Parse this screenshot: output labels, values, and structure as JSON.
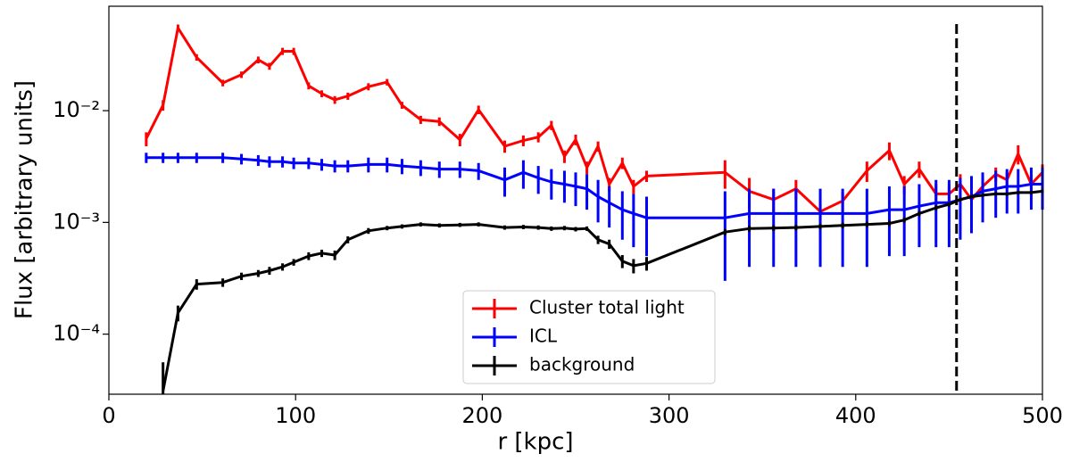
{
  "chart_data": {
    "type": "line",
    "xlabel": "r [kpc]",
    "ylabel": "Flux [arbitrary units]",
    "xlim": [
      0,
      500
    ],
    "xticks": [
      0,
      100,
      200,
      300,
      400,
      500
    ],
    "ylim": [
      2.9e-05,
      0.086
    ],
    "log_y": true,
    "yticks": [
      {
        "value": 0.0001,
        "label": "10⁻⁴"
      },
      {
        "value": 0.001,
        "label": "10⁻³"
      },
      {
        "value": 0.01,
        "label": "10⁻²"
      }
    ],
    "vline": 454,
    "legend": "lower center",
    "x": [
      20,
      29,
      37,
      47,
      61,
      71,
      80,
      86,
      93,
      99,
      107,
      114,
      121,
      128,
      139,
      149,
      157,
      167,
      177,
      188,
      198,
      212,
      222,
      230,
      237,
      244,
      250,
      256,
      262,
      268,
      275,
      281,
      288,
      330,
      343,
      356,
      368,
      381,
      393,
      406,
      418,
      426,
      434,
      443,
      450,
      456,
      462,
      468,
      475,
      481,
      487,
      494,
      500
    ],
    "series": [
      {
        "name": "Cluster total light",
        "color": "#ff0000",
        "values": [
          0.0056,
          0.0112,
          0.055,
          0.03,
          0.0177,
          0.021,
          0.0285,
          0.025,
          0.034,
          0.034,
          0.0167,
          0.0142,
          0.0125,
          0.0135,
          0.0164,
          0.018,
          0.0112,
          0.0083,
          0.008,
          0.0055,
          0.0102,
          0.0048,
          0.0054,
          0.0058,
          0.0074,
          0.0039,
          0.0055,
          0.0031,
          0.0048,
          0.0022,
          0.0034,
          0.0021,
          0.0026,
          0.0028,
          0.0019,
          0.0016,
          0.002,
          0.00125,
          0.00156,
          0.0029,
          0.0044,
          0.0022,
          0.003,
          0.0018,
          0.0018,
          0.0022,
          0.0016,
          0.0021,
          0.0027,
          0.0024,
          0.0041,
          0.0022,
          0.0028
        ],
        "errors": [
          0.0008,
          0.0012,
          0.004,
          0.002,
          0.0012,
          0.0014,
          0.002,
          0.0018,
          0.0025,
          0.0025,
          0.0012,
          0.001,
          0.001,
          0.001,
          0.0012,
          0.0012,
          0.0008,
          0.0007,
          0.0007,
          0.0007,
          0.0009,
          0.0006,
          0.0006,
          0.0006,
          0.0007,
          0.0005,
          0.0006,
          0.0004,
          0.0005,
          0.0003,
          0.0004,
          0.0003,
          0.0003,
          0.0008,
          0.0006,
          0.0004,
          0.0004,
          0.0002,
          0.0003,
          0.0006,
          0.0008,
          0.0004,
          0.0005,
          0.0004,
          0.0004,
          0.0005,
          0.0006,
          0.0004,
          0.0004,
          0.0004,
          0.0008,
          0.0005,
          0.0005
        ]
      },
      {
        "name": "ICL",
        "color": "#0000ff",
        "values": [
          0.0038,
          0.0038,
          0.0038,
          0.0038,
          0.0038,
          0.0037,
          0.0036,
          0.0035,
          0.0035,
          0.0034,
          0.0034,
          0.0033,
          0.0032,
          0.0032,
          0.0033,
          0.0033,
          0.0032,
          0.0031,
          0.003,
          0.003,
          0.0029,
          0.0024,
          0.0028,
          0.0025,
          0.0023,
          0.0022,
          0.0021,
          0.002,
          0.0017,
          0.0015,
          0.0013,
          0.0012,
          0.0011,
          0.0011,
          0.0012,
          0.0012,
          0.0012,
          0.0012,
          0.0012,
          0.0012,
          0.0013,
          0.0013,
          0.0014,
          0.0015,
          0.0015,
          0.0016,
          0.0017,
          0.0019,
          0.002,
          0.0021,
          0.0021,
          0.0022,
          0.0022
        ],
        "errors": [
          0.0004,
          0.0004,
          0.0004,
          0.0004,
          0.0004,
          0.0004,
          0.0004,
          0.0004,
          0.0004,
          0.0004,
          0.0004,
          0.0004,
          0.0004,
          0.0004,
          0.0005,
          0.0005,
          0.0005,
          0.0005,
          0.0005,
          0.0005,
          0.0005,
          0.0007,
          0.0008,
          0.0007,
          0.0007,
          0.0007,
          0.0007,
          0.0007,
          0.0007,
          0.0006,
          0.0006,
          0.0006,
          0.0006,
          0.0008,
          0.0008,
          0.0008,
          0.0008,
          0.0008,
          0.0008,
          0.0008,
          0.0008,
          0.0008,
          0.0008,
          0.0009,
          0.0009,
          0.0009,
          0.0009,
          0.0009,
          0.0009,
          0.0009,
          0.0009,
          0.0009,
          0.0009
        ]
      },
      {
        "name": "background",
        "color": "#000000",
        "values": [
          null,
          3.1e-05,
          0.000155,
          0.00028,
          0.00029,
          0.00033,
          0.00035,
          0.00037,
          0.0004,
          0.00044,
          0.0005,
          0.00053,
          0.00051,
          0.0007,
          0.00084,
          0.00089,
          0.00092,
          0.00096,
          0.00094,
          0.00095,
          0.00096,
          0.0009,
          0.00091,
          0.0009,
          0.00088,
          0.00089,
          0.00087,
          0.00088,
          0.0007,
          0.00064,
          0.00045,
          0.00041,
          0.00043,
          0.00082,
          0.00088,
          0.00089,
          0.0009,
          0.00092,
          0.00094,
          0.00096,
          0.00098,
          0.00105,
          0.0012,
          0.00135,
          0.00145,
          0.0016,
          0.0017,
          0.00175,
          0.0018,
          0.0018,
          0.00185,
          0.00185,
          0.0019
        ],
        "errors": [
          null,
          2.5e-05,
          2.5e-05,
          3e-05,
          2.5e-05,
          2.5e-05,
          2.5e-05,
          3e-05,
          3e-05,
          3e-05,
          4e-05,
          4e-05,
          5e-05,
          5e-05,
          5e-05,
          4e-05,
          4e-05,
          4e-05,
          4e-05,
          4e-05,
          4e-05,
          4e-05,
          4e-05,
          4e-05,
          4e-05,
          4e-05,
          4e-05,
          4e-05,
          6e-05,
          6e-05,
          6e-05,
          6e-05,
          6e-05,
          5e-05,
          5e-05,
          5e-05,
          5e-05,
          5e-05,
          5e-05,
          5e-05,
          5e-05,
          5e-05,
          6e-05,
          6e-05,
          6e-05,
          6e-05,
          6e-05,
          6e-05,
          6e-05,
          6e-05,
          6e-05,
          6e-05,
          6e-05
        ]
      }
    ]
  }
}
